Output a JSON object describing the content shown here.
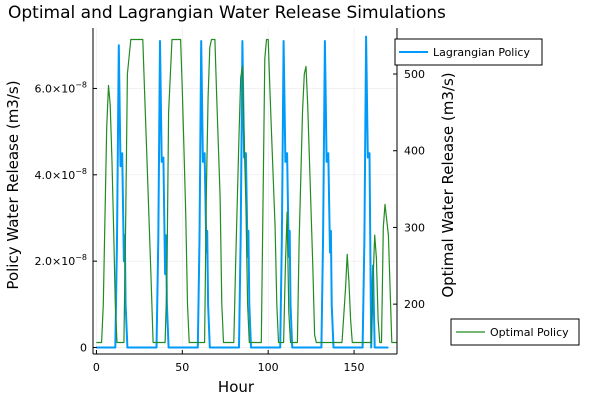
{
  "chart_data": {
    "type": "line",
    "title": "Optimal and Lagrangian Water Release Simulations",
    "xlabel": "Hour",
    "ylabel_left": "Policy Water Release (m3/s)",
    "ylabel_right": "Optimal Water Release (m3/s)",
    "xlim": [
      -2,
      175
    ],
    "ylim_left": [
      -1.5e-09,
      7.4e-08
    ],
    "ylim_right": [
      135,
      560
    ],
    "grid": true,
    "x_ticks": [
      {
        "value": 0,
        "label": "0"
      },
      {
        "value": 50,
        "label": "50"
      },
      {
        "value": 100,
        "label": "100"
      },
      {
        "value": 150,
        "label": "150"
      }
    ],
    "y_left_ticks": [
      {
        "value": 0,
        "label": "0"
      },
      {
        "value": 2e-08,
        "label": "2.0×10",
        "exp": "−8"
      },
      {
        "value": 4e-08,
        "label": "4.0×10",
        "exp": "−8"
      },
      {
        "value": 6e-08,
        "label": "6.0×10",
        "exp": "−8"
      }
    ],
    "y_right_ticks": [
      {
        "value": 200,
        "label": "200"
      },
      {
        "value": 300,
        "label": "300"
      },
      {
        "value": 400,
        "label": "400"
      },
      {
        "value": 500,
        "label": "500"
      }
    ],
    "series": [
      {
        "name": "Lagrangian Policy",
        "axis": "left",
        "color": "#009AFA",
        "points": [
          [
            0,
            0
          ],
          [
            11,
            0
          ],
          [
            12,
            2.5e-08
          ],
          [
            13,
            7e-08
          ],
          [
            14,
            4.2e-08
          ],
          [
            15,
            4.5e-08
          ],
          [
            16,
            2e-08
          ],
          [
            16.5,
            2.6e-08
          ],
          [
            17,
            1e-08
          ],
          [
            18,
            0
          ],
          [
            35,
            0
          ],
          [
            36,
            2.5e-08
          ],
          [
            37,
            7.1e-08
          ],
          [
            38,
            4.3e-08
          ],
          [
            39,
            4.4e-08
          ],
          [
            40,
            1.7e-08
          ],
          [
            40.5,
            2.6e-08
          ],
          [
            41,
            1e-08
          ],
          [
            42,
            0
          ],
          [
            59,
            0
          ],
          [
            60,
            2.5e-08
          ],
          [
            61,
            7.1e-08
          ],
          [
            62,
            4.3e-08
          ],
          [
            63,
            4.5e-08
          ],
          [
            64,
            2.2e-08
          ],
          [
            64.5,
            2.7e-08
          ],
          [
            65,
            1e-08
          ],
          [
            66,
            0
          ],
          [
            83,
            0
          ],
          [
            84,
            2.6e-08
          ],
          [
            85,
            7.1e-08
          ],
          [
            86,
            4.4e-08
          ],
          [
            87,
            4.5e-08
          ],
          [
            88,
            2.1e-08
          ],
          [
            88.5,
            2.7e-08
          ],
          [
            89,
            1e-08
          ],
          [
            90,
            0
          ],
          [
            107,
            0
          ],
          [
            108,
            2.6e-08
          ],
          [
            109,
            7.1e-08
          ],
          [
            110,
            4.3e-08
          ],
          [
            111,
            4.5e-08
          ],
          [
            112,
            2.1e-08
          ],
          [
            112.5,
            2.7e-08
          ],
          [
            113,
            1e-08
          ],
          [
            114,
            0
          ],
          [
            131,
            0
          ],
          [
            132,
            2.6e-08
          ],
          [
            133,
            7.1e-08
          ],
          [
            134,
            4.3e-08
          ],
          [
            135,
            4.5e-08
          ],
          [
            136,
            2.2e-08
          ],
          [
            136.5,
            2.7e-08
          ],
          [
            137,
            1e-08
          ],
          [
            138,
            0
          ],
          [
            155,
            0
          ],
          [
            156,
            2.5e-08
          ],
          [
            157,
            7.2e-08
          ],
          [
            158,
            4.4e-08
          ],
          [
            159,
            4.5e-08
          ],
          [
            160,
            0
          ],
          [
            161,
            1.9e-08
          ],
          [
            162,
            0
          ],
          [
            170,
            0
          ]
        ]
      },
      {
        "name": "Optimal Policy",
        "axis": "right",
        "color": "#228B22",
        "points": [
          [
            0,
            150
          ],
          [
            3,
            150
          ],
          [
            4,
            200
          ],
          [
            6,
            430
          ],
          [
            7,
            485
          ],
          [
            8,
            460
          ],
          [
            9,
            390
          ],
          [
            10,
            300
          ],
          [
            11,
            200
          ],
          [
            12,
            150
          ],
          [
            16,
            150
          ],
          [
            17,
            300
          ],
          [
            18,
            500
          ],
          [
            20,
            545
          ],
          [
            27,
            545
          ],
          [
            28,
            480
          ],
          [
            30,
            350
          ],
          [
            32,
            220
          ],
          [
            33,
            150
          ],
          [
            40,
            150
          ],
          [
            41,
            230
          ],
          [
            42,
            450
          ],
          [
            44,
            545
          ],
          [
            49,
            545
          ],
          [
            50,
            480
          ],
          [
            52,
            320
          ],
          [
            53,
            200
          ],
          [
            54,
            150
          ],
          [
            63,
            150
          ],
          [
            64,
            350
          ],
          [
            65,
            470
          ],
          [
            66,
            535
          ],
          [
            67,
            545
          ],
          [
            69,
            545
          ],
          [
            70,
            470
          ],
          [
            72,
            340
          ],
          [
            73,
            200
          ],
          [
            74,
            150
          ],
          [
            80,
            150
          ],
          [
            81,
            250
          ],
          [
            83,
            420
          ],
          [
            84,
            495
          ],
          [
            85,
            510
          ],
          [
            86,
            420
          ],
          [
            87,
            330
          ],
          [
            88,
            200
          ],
          [
            89,
            150
          ],
          [
            96,
            150
          ],
          [
            97,
            330
          ],
          [
            98,
            520
          ],
          [
            99,
            545
          ],
          [
            100,
            545
          ],
          [
            101,
            480
          ],
          [
            102,
            420
          ],
          [
            104,
            300
          ],
          [
            105,
            200
          ],
          [
            106,
            150
          ],
          [
            109,
            150
          ],
          [
            110,
            250
          ],
          [
            111,
            320
          ],
          [
            112,
            190
          ],
          [
            113,
            150
          ],
          [
            117,
            150
          ],
          [
            118,
            280
          ],
          [
            120,
            450
          ],
          [
            121,
            500
          ],
          [
            122,
            510
          ],
          [
            123,
            460
          ],
          [
            124,
            390
          ],
          [
            126,
            250
          ],
          [
            127,
            160
          ],
          [
            128,
            150
          ],
          [
            143,
            150
          ],
          [
            145,
            220
          ],
          [
            146,
            265
          ],
          [
            147,
            230
          ],
          [
            148,
            180
          ],
          [
            149,
            150
          ],
          [
            160,
            150
          ],
          [
            161,
            230
          ],
          [
            162,
            290
          ],
          [
            163,
            260
          ],
          [
            164,
            180
          ],
          [
            165,
            150
          ],
          [
            166,
            150
          ],
          [
            167,
            300
          ],
          [
            168,
            330
          ],
          [
            170,
            290
          ],
          [
            172,
            150
          ],
          [
            175,
            150
          ]
        ]
      }
    ]
  }
}
